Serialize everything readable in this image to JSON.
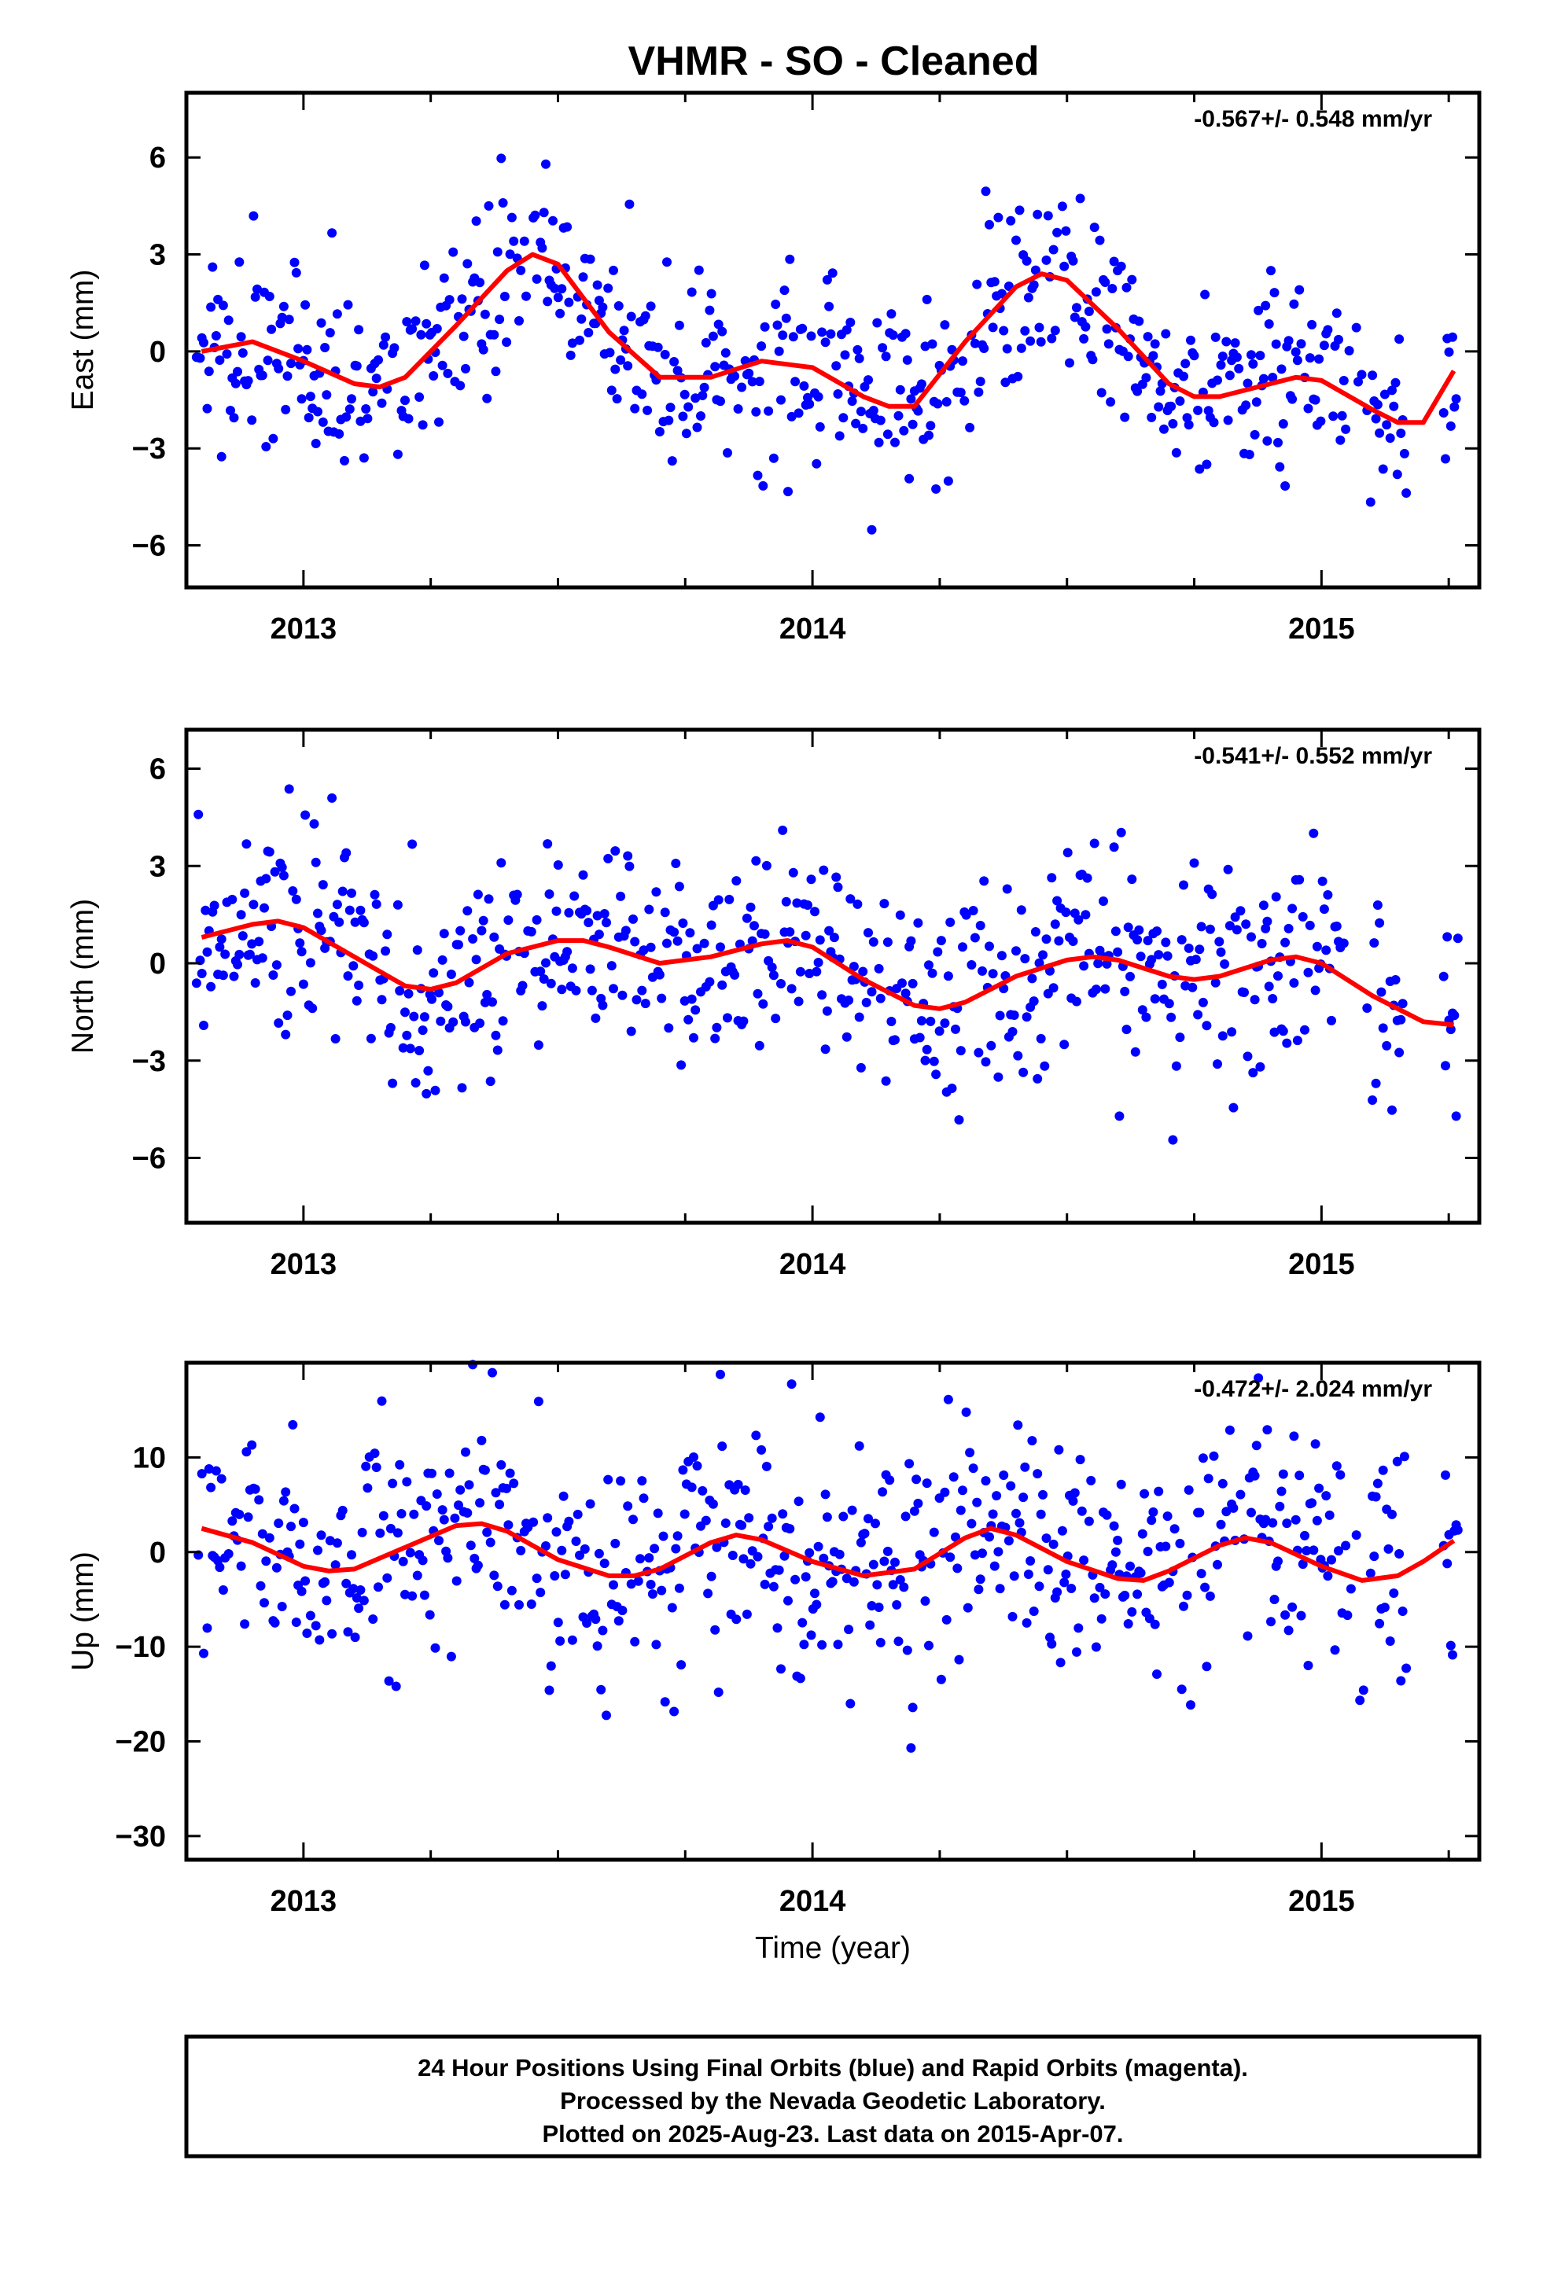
{
  "title": "VHMR  - SO - Cleaned",
  "footer": {
    "lines": [
      "24 Hour Positions Using Final Orbits (blue) and Rapid Orbits (magenta).",
      "Processed by the Nevada Geodetic Laboratory.",
      "Plotted on 2025-Aug-23. Last data on 2015-Apr-07."
    ]
  },
  "colors": {
    "points": "#0000ff",
    "model": "#ff0000",
    "frame": "#000000"
  },
  "chart_data": [
    {
      "type": "scatter",
      "ylabel": "East (mm)",
      "xlabel": "",
      "rate": "-0.567+/- 0.548 mm/yr",
      "xlim": [
        2012.77,
        2015.31
      ],
      "ylim": [
        -7.3,
        8.0
      ],
      "yticks": [
        -6,
        -3,
        0,
        3,
        6
      ],
      "ytick_labels": [
        "−6",
        "−3",
        "0",
        "3",
        "6"
      ],
      "xticks": [
        2013,
        2014,
        2015
      ],
      "xtick_labels": [
        "2013",
        "2014",
        "2015"
      ],
      "model": {
        "x": [
          2012.8,
          2012.9,
          2013.0,
          2013.1,
          2013.15,
          2013.2,
          2013.3,
          2013.4,
          2013.45,
          2013.5,
          2013.6,
          2013.7,
          2013.8,
          2013.9,
          2014.0,
          2014.1,
          2014.15,
          2014.2,
          2014.3,
          2014.4,
          2014.45,
          2014.5,
          2014.6,
          2014.7,
          2014.75,
          2014.8,
          2014.9,
          2014.95,
          2015.0,
          2015.1,
          2015.15,
          2015.2,
          2015.26
        ],
        "y": [
          0.0,
          0.3,
          -0.3,
          -1.0,
          -1.1,
          -0.8,
          0.8,
          2.5,
          3.0,
          2.7,
          0.6,
          -0.8,
          -0.8,
          -0.3,
          -0.5,
          -1.4,
          -1.7,
          -1.7,
          0.3,
          2.0,
          2.4,
          2.2,
          0.7,
          -1.0,
          -1.4,
          -1.4,
          -1.0,
          -0.8,
          -0.9,
          -1.8,
          -2.2,
          -2.2,
          -0.6
        ]
      }
    },
    {
      "type": "scatter",
      "ylabel": "North (mm)",
      "xlabel": "",
      "rate": "-0.541+/- 0.552 mm/yr",
      "xlim": [
        2012.77,
        2015.31
      ],
      "ylim": [
        -8.0,
        7.2
      ],
      "yticks": [
        -6,
        -3,
        0,
        3,
        6
      ],
      "ytick_labels": [
        "−6",
        "−3",
        "0",
        "3",
        "6"
      ],
      "xticks": [
        2013,
        2014,
        2015
      ],
      "xtick_labels": [
        "2013",
        "2014",
        "2015"
      ],
      "model": {
        "x": [
          2012.8,
          2012.9,
          2012.95,
          2013.0,
          2013.1,
          2013.2,
          2013.25,
          2013.3,
          2013.4,
          2013.5,
          2013.55,
          2013.6,
          2013.7,
          2013.8,
          2013.9,
          2013.95,
          2014.0,
          2014.1,
          2014.2,
          2014.25,
          2014.3,
          2014.4,
          2014.5,
          2014.55,
          2014.6,
          2014.7,
          2014.75,
          2014.8,
          2014.9,
          2014.95,
          2015.0,
          2015.1,
          2015.2,
          2015.26
        ],
        "y": [
          0.8,
          1.2,
          1.3,
          1.1,
          0.2,
          -0.7,
          -0.8,
          -0.6,
          0.3,
          0.7,
          0.7,
          0.5,
          0.0,
          0.2,
          0.6,
          0.7,
          0.5,
          -0.5,
          -1.3,
          -1.4,
          -1.2,
          -0.4,
          0.1,
          0.2,
          0.1,
          -0.4,
          -0.5,
          -0.4,
          0.1,
          0.2,
          0.0,
          -1.0,
          -1.8,
          -1.9
        ]
      }
    },
    {
      "type": "scatter",
      "ylabel": "Up (mm)",
      "xlabel": "Time (year)",
      "rate": "-0.472+/- 2.024 mm/yr",
      "xlim": [
        2012.77,
        2015.31
      ],
      "ylim": [
        -32.5,
        20.0
      ],
      "yticks": [
        -30,
        -20,
        -10,
        0,
        10
      ],
      "ytick_labels": [
        "−30",
        "−20",
        "−10",
        "0",
        "10"
      ],
      "xticks": [
        2013,
        2014,
        2015
      ],
      "xtick_labels": [
        "2013",
        "2014",
        "2015"
      ],
      "model": {
        "x": [
          2012.8,
          2012.9,
          2013.0,
          2013.05,
          2013.1,
          2013.2,
          2013.3,
          2013.35,
          2013.4,
          2013.5,
          2013.6,
          2013.65,
          2013.7,
          2013.8,
          2013.85,
          2013.9,
          2014.0,
          2014.1,
          2014.2,
          2014.3,
          2014.35,
          2014.4,
          2014.5,
          2014.6,
          2014.65,
          2014.7,
          2014.8,
          2014.85,
          2014.9,
          2015.0,
          2015.08,
          2015.15,
          2015.2,
          2015.26
        ],
        "y": [
          2.5,
          1.0,
          -1.5,
          -2.0,
          -1.8,
          0.5,
          2.8,
          3.0,
          2.2,
          -0.8,
          -2.5,
          -2.5,
          -1.8,
          1.0,
          1.8,
          1.3,
          -1.0,
          -2.5,
          -1.8,
          1.5,
          2.5,
          1.8,
          -1.0,
          -2.8,
          -3.0,
          -2.0,
          0.7,
          1.5,
          1.0,
          -1.5,
          -3.0,
          -2.5,
          -1.0,
          1.2
        ]
      }
    }
  ]
}
